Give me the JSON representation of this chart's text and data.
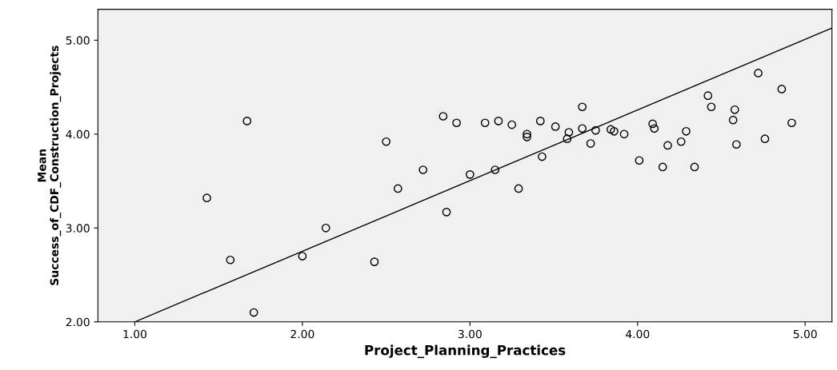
{
  "chart_data": {
    "type": "scatter",
    "xlabel": "Project_Planning_Practices",
    "ylabel": "Mean\nSuccess_of_CDF_Construction_Projects",
    "xlim": [
      0.78,
      5.16
    ],
    "ylim": [
      2.0,
      5.33
    ],
    "xticks": [
      {
        "value": 1,
        "label": "1.00"
      },
      {
        "value": 2,
        "label": "2.00"
      },
      {
        "value": 3,
        "label": "3.00"
      },
      {
        "value": 4,
        "label": "4.00"
      },
      {
        "value": 5,
        "label": "5.00"
      }
    ],
    "yticks": [
      {
        "value": 2,
        "label": "2.00"
      },
      {
        "value": 3,
        "label": "3.00"
      },
      {
        "value": 4,
        "label": "4.00"
      },
      {
        "value": 5,
        "label": "5.00"
      }
    ],
    "grid": false,
    "legend": false,
    "series": [
      {
        "color": "#000000",
        "marker": "circle",
        "x": [
          1.67,
          1.43,
          1.57,
          1.71,
          2.0,
          2.14,
          2.43,
          2.5,
          2.57,
          2.72,
          2.84,
          2.86,
          2.92,
          3.0,
          3.09,
          3.15,
          3.17,
          3.25,
          3.29,
          3.34,
          3.34,
          3.42,
          3.43,
          3.51,
          3.58,
          3.59,
          3.67,
          3.67,
          3.72,
          3.75,
          3.84,
          3.86,
          3.92,
          4.01,
          4.09,
          4.1,
          4.15,
          4.18,
          4.26,
          4.29,
          4.34,
          4.42,
          4.44,
          4.58,
          4.57,
          4.59,
          4.72,
          4.76,
          4.86,
          4.92
        ],
        "values": [
          4.14,
          3.32,
          2.66,
          2.1,
          2.7,
          3.0,
          2.64,
          3.92,
          3.42,
          3.62,
          4.19,
          3.17,
          4.12,
          3.57,
          4.12,
          3.62,
          4.14,
          4.1,
          3.42,
          4.0,
          3.97,
          4.14,
          3.76,
          4.08,
          3.95,
          4.02,
          4.29,
          4.06,
          3.9,
          4.04,
          4.05,
          4.03,
          4.0,
          3.72,
          4.11,
          4.06,
          3.65,
          3.88,
          3.92,
          4.03,
          3.65,
          4.41,
          4.29,
          4.26,
          4.15,
          3.89,
          4.65,
          3.95,
          4.48,
          4.12
        ]
      },
      {
        "type": "line",
        "color": "#000000",
        "marker": "none",
        "line_style": "solid",
        "x": [
          1.0,
          5.16
        ],
        "values": [
          2.0,
          5.13
        ]
      }
    ]
  }
}
